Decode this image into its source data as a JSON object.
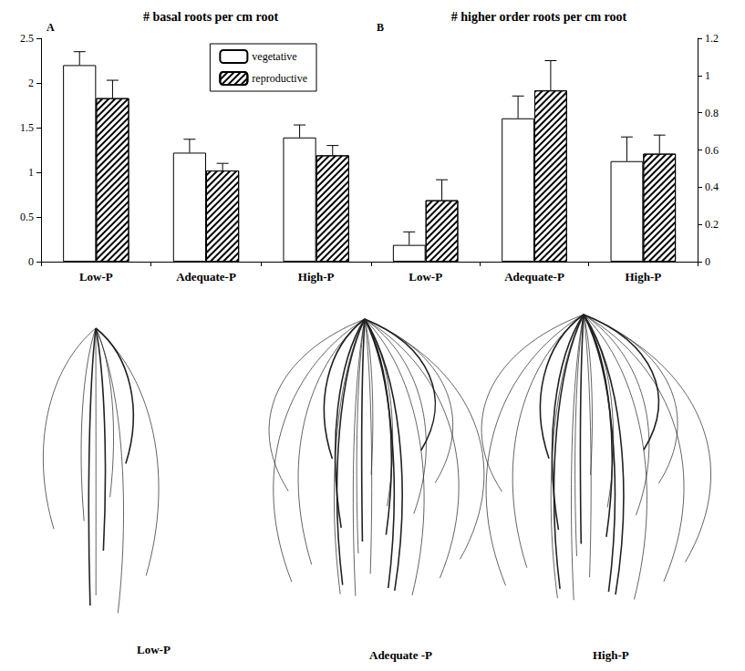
{
  "chart_data": [
    {
      "type": "bar",
      "title": "# basal roots per cm root",
      "annotations": [
        "A"
      ],
      "categories": [
        "Low-P",
        "Adequate-P",
        "High-P"
      ],
      "series": [
        {
          "name": "vegetative",
          "color": "#ffffff",
          "values": [
            2.2,
            1.22,
            1.39
          ],
          "errors": [
            0.15,
            0.15,
            0.14
          ]
        },
        {
          "name": "reproductive",
          "color": "#000000",
          "values": [
            1.83,
            1.02,
            1.19
          ],
          "errors": [
            0.2,
            0.08,
            0.11
          ]
        }
      ],
      "ylim": [
        0,
        2.5
      ],
      "yticks": [
        0,
        0.5,
        1,
        1.5,
        2,
        2.5
      ],
      "legend": "upper right"
    },
    {
      "type": "bar",
      "title": "# higher order roots per cm root",
      "annotations": [
        "B"
      ],
      "categories": [
        "Low-P",
        "Adequate-P",
        "High-P"
      ],
      "series": [
        {
          "name": "vegetative",
          "color": "#ffffff",
          "values": [
            0.09,
            0.77,
            0.54
          ],
          "errors": [
            0.07,
            0.12,
            0.13
          ]
        },
        {
          "name": "reproductive",
          "color": "#000000",
          "values": [
            0.33,
            0.92,
            0.58
          ],
          "errors": [
            0.11,
            0.16,
            0.1
          ]
        }
      ],
      "ylim": [
        0,
        1.2
      ],
      "yticks": [
        0,
        0.2,
        0.4,
        0.6,
        0.8,
        1,
        1.2
      ]
    }
  ],
  "figure_labels": [
    "Low-P",
    "Adequate -P",
    "High-P"
  ]
}
